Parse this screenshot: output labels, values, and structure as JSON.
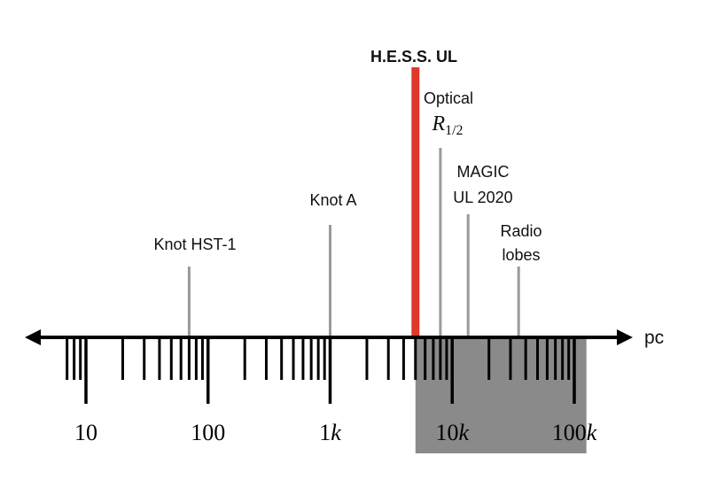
{
  "axis": {
    "unit_label": "pc",
    "scale": "log",
    "range_pc": [
      7,
      130000
    ],
    "ticks": [
      {
        "value": 10,
        "main": "10",
        "suffix": ""
      },
      {
        "value": 100,
        "main": "100",
        "suffix": ""
      },
      {
        "value": 1000,
        "main": "1",
        "suffix": "k"
      },
      {
        "value": 10000,
        "main": "10",
        "suffix": "k"
      },
      {
        "value": 100000,
        "main": "100",
        "suffix": "k"
      }
    ],
    "shaded_region_pc": [
      5000,
      110000
    ],
    "colors": {
      "axis": "#000000",
      "shaded": "#8a8a8a"
    }
  },
  "markers": [
    {
      "id": "knot-hst-1",
      "value_pc": 70,
      "lines": [
        "Knot HST-1"
      ],
      "color": "#9a9a9a"
    },
    {
      "id": "knot-a",
      "value_pc": 1000,
      "lines": [
        "Knot A"
      ],
      "color": "#9a9a9a"
    },
    {
      "id": "hess-ul",
      "value_pc": 5000,
      "lines": [
        "H.E.S.S. UL"
      ],
      "bold": true,
      "color": "#e0392b"
    },
    {
      "id": "optical-r-half",
      "value_pc": 8000,
      "lines": [
        "Optical"
      ],
      "math_main": "R",
      "math_sub": "1/2",
      "color": "#9a9a9a"
    },
    {
      "id": "magic-ul-2020",
      "value_pc": 13500,
      "lines": [
        "MAGIC",
        "UL 2020"
      ],
      "color": "#9a9a9a"
    },
    {
      "id": "radio-lobes",
      "value_pc": 35000,
      "lines": [
        "Radio",
        "lobes"
      ],
      "color": "#9a9a9a"
    }
  ]
}
